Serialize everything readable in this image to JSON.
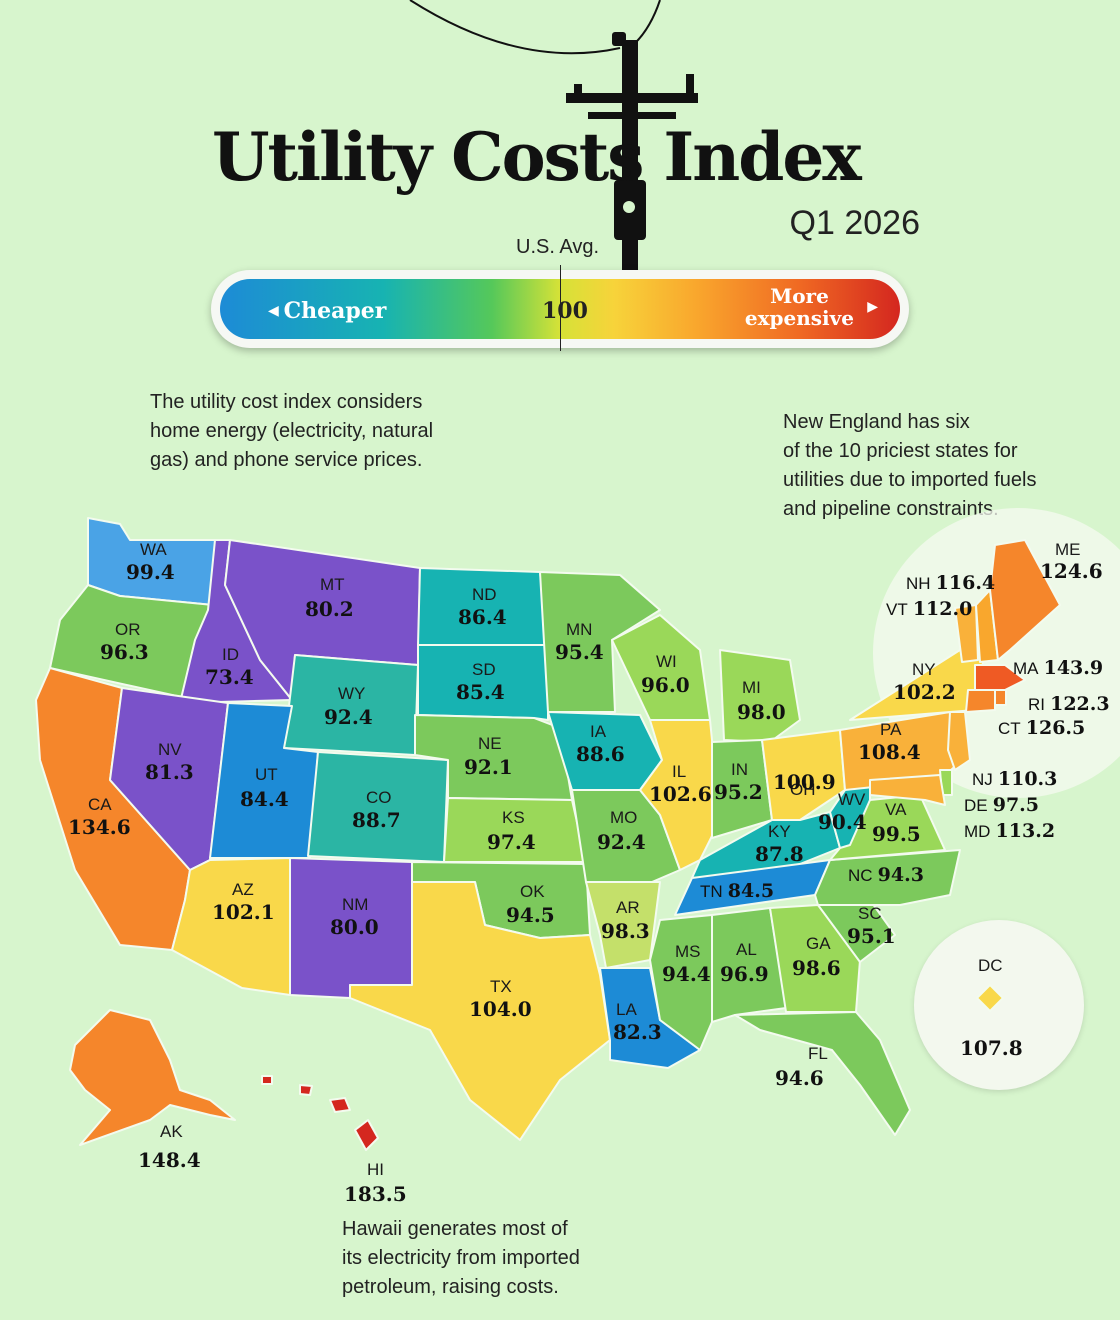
{
  "title": "Utility Costs Index",
  "quarter": "Q1 2026",
  "scale": {
    "avg_label": "U.S. Avg.",
    "avg_value": "100",
    "cheaper": "Cheaper",
    "more_line1": "More",
    "more_line2": "expensive"
  },
  "notes": {
    "definition": [
      "The utility cost index considers",
      "home energy (electricity, natural",
      "gas) and phone service prices."
    ],
    "new_england": [
      "New England has six",
      "of the 10 priciest states for",
      "utilities due to imported fuels",
      "and pipeline constraints."
    ],
    "hawaii": [
      "Hawaii generates most of",
      "its electricity from imported",
      "petroleum, raising costs."
    ]
  },
  "colors": {
    "background": "#d7f5cd",
    "blue": "#1d8bd6",
    "teal": "#17b3b2",
    "purple": "#7a52c9",
    "light_green": "#9ad859",
    "green": "#7cc95c",
    "yellow": "#f9d84a",
    "light_orange": "#f9b13a",
    "orange": "#f5862b",
    "red_orange": "#ef5a24",
    "red": "#d4271f"
  },
  "states": {
    "WA": {
      "abbr": "WA",
      "value": "99.4"
    },
    "OR": {
      "abbr": "OR",
      "value": "96.3"
    },
    "CA": {
      "abbr": "CA",
      "value": "134.6"
    },
    "ID": {
      "abbr": "ID",
      "value": "73.4"
    },
    "NV": {
      "abbr": "NV",
      "value": "81.3"
    },
    "MT": {
      "abbr": "MT",
      "value": "80.2"
    },
    "WY": {
      "abbr": "WY",
      "value": "92.4"
    },
    "UT": {
      "abbr": "UT",
      "value": "84.4"
    },
    "AZ": {
      "abbr": "AZ",
      "value": "102.1"
    },
    "CO": {
      "abbr": "CO",
      "value": "88.7"
    },
    "NM": {
      "abbr": "NM",
      "value": "80.0"
    },
    "ND": {
      "abbr": "ND",
      "value": "86.4"
    },
    "SD": {
      "abbr": "SD",
      "value": "85.4"
    },
    "NE": {
      "abbr": "NE",
      "value": "92.1"
    },
    "KS": {
      "abbr": "KS",
      "value": "97.4"
    },
    "OK": {
      "abbr": "OK",
      "value": "94.5"
    },
    "TX": {
      "abbr": "TX",
      "value": "104.0"
    },
    "MN": {
      "abbr": "MN",
      "value": "95.4"
    },
    "IA": {
      "abbr": "IA",
      "value": "88.6"
    },
    "MO": {
      "abbr": "MO",
      "value": "92.4"
    },
    "AR": {
      "abbr": "AR",
      "value": "98.3"
    },
    "LA": {
      "abbr": "LA",
      "value": "82.3"
    },
    "WI": {
      "abbr": "WI",
      "value": "96.0"
    },
    "IL": {
      "abbr": "IL",
      "value": "102.6"
    },
    "MI": {
      "abbr": "MI",
      "value": "98.0"
    },
    "IN": {
      "abbr": "IN",
      "value": "95.2"
    },
    "OH": {
      "abbr": "OH",
      "value": "100.9"
    },
    "KY": {
      "abbr": "KY",
      "value": "87.8"
    },
    "TN": {
      "abbr": "TN",
      "value": "84.5"
    },
    "MS": {
      "abbr": "MS",
      "value": "94.4"
    },
    "AL": {
      "abbr": "AL",
      "value": "96.9"
    },
    "GA": {
      "abbr": "GA",
      "value": "98.6"
    },
    "FL": {
      "abbr": "FL",
      "value": "94.6"
    },
    "SC": {
      "abbr": "SC",
      "value": "95.1"
    },
    "NC": {
      "abbr": "NC",
      "value": "94.3"
    },
    "VA": {
      "abbr": "VA",
      "value": "99.5"
    },
    "WV": {
      "abbr": "WV",
      "value": "90.4"
    },
    "PA": {
      "abbr": "PA",
      "value": "108.4"
    },
    "NY": {
      "abbr": "NY",
      "value": "102.2"
    },
    "VT": {
      "abbr": "VT",
      "value": "112.0"
    },
    "NH": {
      "abbr": "NH",
      "value": "116.4"
    },
    "ME": {
      "abbr": "ME",
      "value": "124.6"
    },
    "MA": {
      "abbr": "MA",
      "value": "143.9"
    },
    "RI": {
      "abbr": "RI",
      "value": "122.3"
    },
    "CT": {
      "abbr": "CT",
      "value": "126.5"
    },
    "NJ": {
      "abbr": "NJ",
      "value": "110.3"
    },
    "DE": {
      "abbr": "DE",
      "value": "97.5"
    },
    "MD": {
      "abbr": "MD",
      "value": "113.2"
    },
    "DC": {
      "abbr": "DC",
      "value": "107.8"
    },
    "AK": {
      "abbr": "AK",
      "value": "148.4"
    },
    "HI": {
      "abbr": "HI",
      "value": "183.5"
    }
  }
}
